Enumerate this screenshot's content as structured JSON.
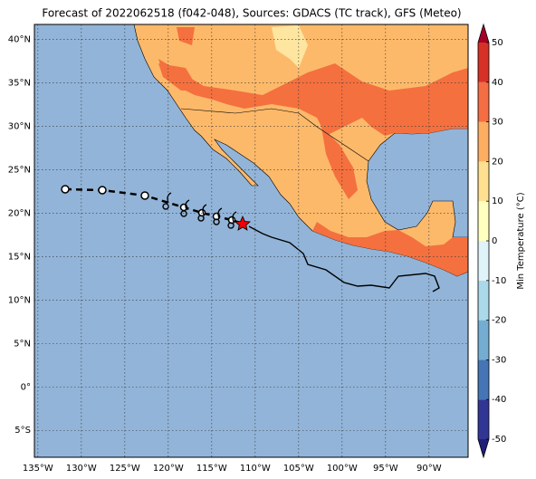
{
  "map": {
    "title": "Forecast of 2022062518 (f042-048), Sources: GDACS (TC track), GFS (Meteo)",
    "xlim": [
      -135.4,
      -85.5
    ],
    "ylim": [
      -8.1,
      41.7
    ],
    "xticks": [
      {
        "value": -135,
        "label": "135°W"
      },
      {
        "value": -130,
        "label": "130°W"
      },
      {
        "value": -125,
        "label": "125°W"
      },
      {
        "value": -120,
        "label": "120°W"
      },
      {
        "value": -115,
        "label": "115°W"
      },
      {
        "value": -110,
        "label": "110°W"
      },
      {
        "value": -105,
        "label": "105°W"
      },
      {
        "value": -100,
        "label": "100°W"
      },
      {
        "value": -95,
        "label": "95°W"
      },
      {
        "value": -90,
        "label": "90°W"
      }
    ],
    "yticks": [
      {
        "value": -5,
        "label": "5°S"
      },
      {
        "value": 0,
        "label": "0°"
      },
      {
        "value": 5,
        "label": "5°N"
      },
      {
        "value": 10,
        "label": "10°N"
      },
      {
        "value": 15,
        "label": "15°N"
      },
      {
        "value": 20,
        "label": "20°N"
      },
      {
        "value": 25,
        "label": "25°N"
      },
      {
        "value": 30,
        "label": "30°N"
      },
      {
        "value": 35,
        "label": "35°N"
      },
      {
        "value": 40,
        "label": "40°N"
      }
    ],
    "grid": true,
    "colorbar": {
      "label": "Min Temperature (°C)",
      "ticks": [
        -50,
        -40,
        -30,
        -20,
        -10,
        0,
        10,
        20,
        30,
        40,
        50
      ],
      "colors": [
        "#313695",
        "#4575b4",
        "#74add1",
        "#abd9e9",
        "#e0f3f8",
        "#ffffbf",
        "#fee090",
        "#fdae61",
        "#f46d43",
        "#d73027"
      ],
      "under_color": "#1f1f7a",
      "over_color": "#a50026"
    }
  }
}
